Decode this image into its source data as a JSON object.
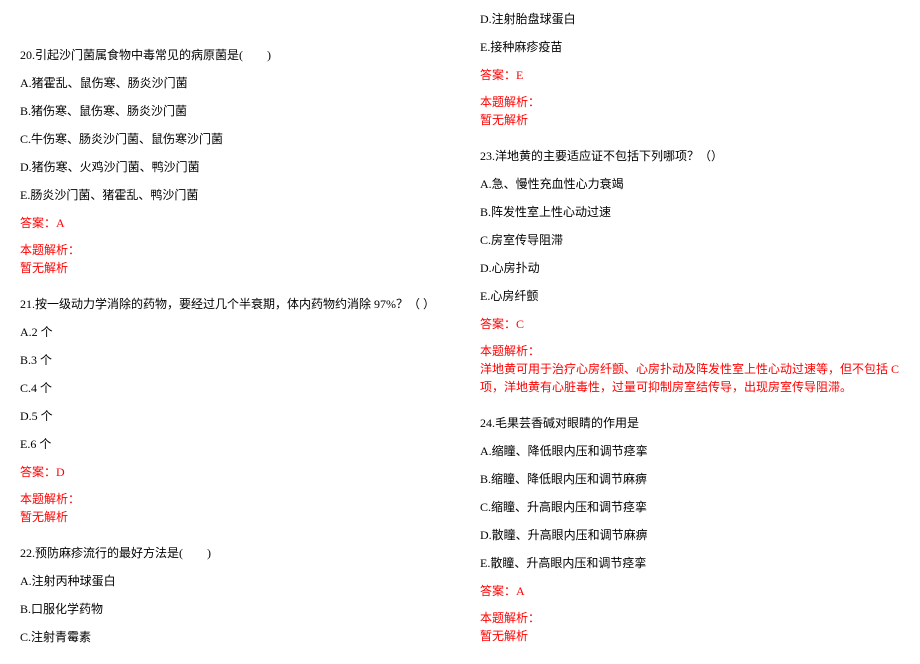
{
  "colors": {
    "text": "#000000",
    "accent": "#ff0000",
    "background": "#ffffff"
  },
  "typography": {
    "fontFamily": "SimSun",
    "fontSize": 12
  },
  "leftColumn": {
    "q20": {
      "text": "20.引起沙门菌属食物中毒常见的病原菌是(　　)",
      "optA": "A.猪霍乱、鼠伤寒、肠炎沙门菌",
      "optB": "B.猪伤寒、鼠伤寒、肠炎沙门菌",
      "optC": "C.牛伤寒、肠炎沙门菌、鼠伤寒沙门菌",
      "optD": "D.猪伤寒、火鸡沙门菌、鸭沙门菌",
      "optE": "E.肠炎沙门菌、猪霍乱、鸭沙门菌",
      "answer": "答案：A",
      "explainLabel": "本题解析：",
      "explainContent": "暂无解析"
    },
    "q21": {
      "text": "21.按一级动力学消除的药物，要经过几个半衰期，体内药物约消除 97%？（ ）",
      "optA": "A.2 个",
      "optB": "B.3 个",
      "optC": "C.4 个",
      "optD": "D.5 个",
      "optE": "E.6 个",
      "answer": "答案：D",
      "explainLabel": "本题解析：",
      "explainContent": "暂无解析"
    },
    "q22": {
      "text": "22.预防麻疹流行的最好方法是(　　)",
      "optA": "A.注射丙种球蛋白",
      "optB": "B.口服化学药物",
      "optC": "C.注射青霉素"
    }
  },
  "rightColumn": {
    "q22cont": {
      "optD": "D.注射胎盘球蛋白",
      "optE": "E.接种麻疹疫苗",
      "answer": "答案：E",
      "explainLabel": "本题解析：",
      "explainContent": "暂无解析"
    },
    "q23": {
      "text": "23.洋地黄的主要适应证不包括下列哪项？（）",
      "optA": "A.急、慢性充血性心力衰竭",
      "optB": "B.阵发性室上性心动过速",
      "optC": "C.房室传导阻滞",
      "optD": "D.心房扑动",
      "optE": "E.心房纤颤",
      "answer": "答案：C",
      "explainLabel": "本题解析：",
      "explainContent": "洋地黄可用于治疗心房纤颤、心房扑动及阵发性室上性心动过速等，但不包括 C 项，洋地黄有心脏毒性，过量可抑制房室结传导，出现房室传导阻滞。"
    },
    "q24": {
      "text": "24.毛果芸香碱对眼睛的作用是",
      "optA": "A.缩瞳、降低眼内压和调节痉挛",
      "optB": "B.缩瞳、降低眼内压和调节麻痹",
      "optC": "C.缩瞳、升高眼内压和调节痉挛",
      "optD": "D.散瞳、升高眼内压和调节麻痹",
      "optE": "E.散瞳、升高眼内压和调节痉挛",
      "answer": "答案：A",
      "explainLabel": "本题解析：",
      "explainContent": "暂无解析"
    }
  }
}
